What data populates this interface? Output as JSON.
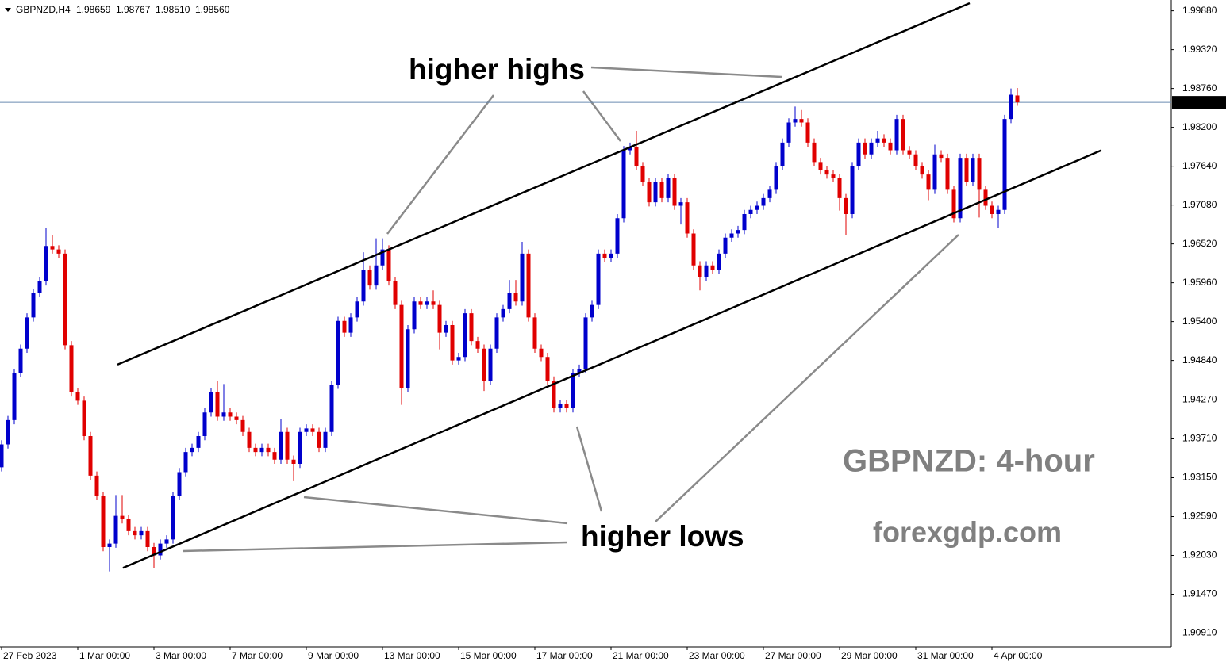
{
  "chart_data": {
    "type": "candlestick",
    "symbol": "GBPNZD,H4",
    "header_values": [
      "1.98659",
      "1.98767",
      "1.98510",
      "1.98560"
    ],
    "up_color": "#0000cc",
    "down_color": "#e00000",
    "open": [
      1.933,
      1.9363,
      1.9398,
      1.9466,
      1.9501,
      1.9546,
      1.9581,
      1.9598,
      1.9649,
      1.9644,
      1.9638,
      1.9506,
      1.9438,
      1.9426,
      1.9375,
      1.9318,
      1.9289,
      1.9215,
      1.922,
      1.926,
      1.9255,
      1.9238,
      1.9232,
      1.9238,
      1.9215,
      1.9203,
      1.922,
      1.9226,
      1.9289,
      1.9323,
      1.9352,
      1.9358,
      1.9375,
      1.9409,
      1.9438,
      1.9403,
      1.9409,
      1.9403,
      1.9398,
      1.9381,
      1.9358,
      1.9352,
      1.9358,
      1.9352,
      1.9341,
      1.9381,
      1.9341,
      1.9335,
      1.9381,
      1.9386,
      1.9381,
      1.9358,
      1.9381,
      1.9449,
      1.9541,
      1.9524,
      1.9546,
      1.9569,
      1.9615,
      1.9592,
      1.9621,
      1.9644,
      1.9598,
      1.9564,
      1.9444,
      1.9529,
      1.9569,
      1.9564,
      1.9569,
      1.9564,
      1.9524,
      1.9535,
      1.9484,
      1.9489,
      1.9552,
      1.9512,
      1.9501,
      1.9455,
      1.9501,
      1.9546,
      1.9558,
      1.9581,
      1.9569,
      1.9638,
      1.9546,
      1.9501,
      1.9489,
      1.9455,
      1.9415,
      1.9421,
      1.9415,
      1.9466,
      1.9472,
      1.9546,
      1.9564,
      1.9638,
      1.9632,
      1.9638,
      1.9689,
      1.9787,
      1.9792,
      1.9764,
      1.9741,
      1.9712,
      1.9741,
      1.9718,
      1.9747,
      1.9707,
      1.9712,
      1.9667,
      1.9621,
      1.9604,
      1.9621,
      1.9615,
      1.9638,
      1.9661,
      1.9667,
      1.9672,
      1.9695,
      1.9701,
      1.9707,
      1.9718,
      1.973,
      1.9764,
      1.9798,
      1.9827,
      1.9832,
      1.9827,
      1.9798,
      1.977,
      1.9758,
      1.9752,
      1.9747,
      1.9718,
      1.9695,
      1.9764,
      1.9798,
      1.9781,
      1.9798,
      1.9804,
      1.9798,
      1.9787,
      1.9832,
      1.9787,
      1.9781,
      1.9764,
      1.9752,
      1.973,
      1.9781,
      1.9776,
      1.973,
      1.9689,
      1.9776,
      1.9741,
      1.9776,
      1.973,
      1.9707,
      1.9695,
      1.9701,
      1.9832,
      1.98659
    ],
    "high": [
      1.9369,
      1.9404,
      1.9472,
      1.9507,
      1.9552,
      1.9587,
      1.9604,
      1.9675,
      1.9665,
      1.965,
      1.9644,
      1.9512,
      1.9444,
      1.9432,
      1.9381,
      1.9324,
      1.9295,
      1.9226,
      1.929,
      1.929,
      1.9261,
      1.9244,
      1.9244,
      1.9244,
      1.9221,
      1.9226,
      1.9232,
      1.9295,
      1.9329,
      1.9358,
      1.9364,
      1.9381,
      1.9415,
      1.9444,
      1.9454,
      1.945,
      1.9415,
      1.9409,
      1.9404,
      1.9387,
      1.9364,
      1.9364,
      1.9364,
      1.9358,
      1.94,
      1.9387,
      1.9347,
      1.9387,
      1.9392,
      1.9392,
      1.9387,
      1.9387,
      1.9455,
      1.9547,
      1.9547,
      1.9552,
      1.9575,
      1.964,
      1.9621,
      1.966,
      1.966,
      1.965,
      1.9604,
      1.957,
      1.9535,
      1.9575,
      1.9575,
      1.9575,
      1.9585,
      1.957,
      1.9541,
      1.9541,
      1.9495,
      1.9558,
      1.9558,
      1.9518,
      1.9507,
      1.9507,
      1.9552,
      1.9564,
      1.96,
      1.96,
      1.9655,
      1.9644,
      1.9552,
      1.9507,
      1.9495,
      1.9461,
      1.9427,
      1.9427,
      1.9472,
      1.9478,
      1.9552,
      1.957,
      1.9644,
      1.9644,
      1.9644,
      1.9695,
      1.9793,
      1.9798,
      1.9815,
      1.977,
      1.9747,
      1.9747,
      1.9747,
      1.9753,
      1.9753,
      1.9718,
      1.9718,
      1.9673,
      1.9627,
      1.9627,
      1.9627,
      1.9644,
      1.9667,
      1.9673,
      1.9678,
      1.9701,
      1.9707,
      1.9713,
      1.9724,
      1.9736,
      1.977,
      1.9804,
      1.9833,
      1.985,
      1.9845,
      1.9833,
      1.9804,
      1.9776,
      1.9764,
      1.9758,
      1.9753,
      1.9724,
      1.977,
      1.9804,
      1.9804,
      1.9804,
      1.9815,
      1.981,
      1.9804,
      1.9838,
      1.9838,
      1.9793,
      1.9787,
      1.977,
      1.9758,
      1.9795,
      1.9787,
      1.9782,
      1.9736,
      1.9782,
      1.9782,
      1.9782,
      1.9782,
      1.9736,
      1.9713,
      1.9707,
      1.9838,
      1.9876,
      1.98767
    ],
    "low": [
      1.9324,
      1.9357,
      1.9392,
      1.946,
      1.9495,
      1.954,
      1.9575,
      1.9592,
      1.9638,
      1.9632,
      1.95,
      1.9432,
      1.942,
      1.9369,
      1.9312,
      1.9283,
      1.9209,
      1.918,
      1.9214,
      1.9249,
      1.9232,
      1.9226,
      1.9226,
      1.9209,
      1.9185,
      1.9197,
      1.9214,
      1.922,
      1.9283,
      1.9317,
      1.9346,
      1.9352,
      1.9369,
      1.9403,
      1.9397,
      1.9397,
      1.9397,
      1.9392,
      1.9375,
      1.9352,
      1.9346,
      1.9346,
      1.9346,
      1.9335,
      1.9335,
      1.9335,
      1.931,
      1.9329,
      1.9375,
      1.9375,
      1.9352,
      1.9352,
      1.9375,
      1.9443,
      1.9518,
      1.9518,
      1.954,
      1.9563,
      1.9586,
      1.9586,
      1.9615,
      1.9592,
      1.9558,
      1.942,
      1.9438,
      1.9523,
      1.9558,
      1.9558,
      1.9558,
      1.95,
      1.9518,
      1.9478,
      1.9478,
      1.9483,
      1.9506,
      1.9495,
      1.944,
      1.9449,
      1.9495,
      1.954,
      1.9552,
      1.9563,
      1.9563,
      1.954,
      1.9495,
      1.9483,
      1.9449,
      1.9409,
      1.9409,
      1.9409,
      1.9409,
      1.946,
      1.9466,
      1.954,
      1.9558,
      1.9626,
      1.9626,
      1.9632,
      1.9683,
      1.9781,
      1.9758,
      1.9735,
      1.9706,
      1.9706,
      1.9712,
      1.9712,
      1.9701,
      1.968,
      1.9661,
      1.9615,
      1.9585,
      1.9598,
      1.9609,
      1.9609,
      1.9632,
      1.9655,
      1.9661,
      1.9666,
      1.9689,
      1.9695,
      1.9701,
      1.9712,
      1.9724,
      1.9758,
      1.9792,
      1.9821,
      1.9821,
      1.9792,
      1.9764,
      1.9752,
      1.9746,
      1.9741,
      1.97,
      1.9665,
      1.9689,
      1.9758,
      1.9775,
      1.9775,
      1.9792,
      1.9792,
      1.9781,
      1.9781,
      1.9781,
      1.9775,
      1.9758,
      1.9746,
      1.9715,
      1.9724,
      1.977,
      1.9724,
      1.9683,
      1.9683,
      1.9735,
      1.9735,
      1.969,
      1.9701,
      1.9689,
      1.9675,
      1.9695,
      1.9826,
      1.9851
    ],
    "close": [
      1.9363,
      1.9398,
      1.9466,
      1.9501,
      1.9546,
      1.9581,
      1.9598,
      1.9649,
      1.9644,
      1.9638,
      1.9506,
      1.9438,
      1.9426,
      1.9375,
      1.9318,
      1.9289,
      1.9215,
      1.922,
      1.926,
      1.9255,
      1.9238,
      1.9232,
      1.9238,
      1.9215,
      1.9203,
      1.922,
      1.9226,
      1.9289,
      1.9323,
      1.9352,
      1.9358,
      1.9375,
      1.9409,
      1.9438,
      1.9403,
      1.9409,
      1.9403,
      1.9398,
      1.9381,
      1.9358,
      1.9352,
      1.9358,
      1.9352,
      1.9341,
      1.9381,
      1.9341,
      1.9335,
      1.9381,
      1.9386,
      1.9381,
      1.9358,
      1.9381,
      1.9449,
      1.9541,
      1.9524,
      1.9546,
      1.9569,
      1.9615,
      1.9592,
      1.9621,
      1.9644,
      1.9598,
      1.9564,
      1.9444,
      1.9529,
      1.9569,
      1.9564,
      1.9569,
      1.9564,
      1.9524,
      1.9535,
      1.9484,
      1.9489,
      1.9552,
      1.9512,
      1.9501,
      1.9455,
      1.9501,
      1.9546,
      1.9558,
      1.9581,
      1.9569,
      1.9638,
      1.9546,
      1.9501,
      1.9489,
      1.9455,
      1.9415,
      1.9421,
      1.9415,
      1.9466,
      1.9472,
      1.9546,
      1.9564,
      1.9638,
      1.9632,
      1.9638,
      1.9689,
      1.9787,
      1.9792,
      1.9764,
      1.9741,
      1.9712,
      1.9741,
      1.9718,
      1.9747,
      1.9707,
      1.9712,
      1.9667,
      1.9621,
      1.9604,
      1.9621,
      1.9615,
      1.9638,
      1.9661,
      1.9667,
      1.9672,
      1.9695,
      1.9701,
      1.9707,
      1.9718,
      1.973,
      1.9764,
      1.9798,
      1.9827,
      1.9832,
      1.9827,
      1.9798,
      1.977,
      1.9758,
      1.9752,
      1.9747,
      1.9718,
      1.9695,
      1.9764,
      1.9798,
      1.9781,
      1.9798,
      1.9804,
      1.9798,
      1.9787,
      1.9832,
      1.9787,
      1.9781,
      1.9764,
      1.9752,
      1.973,
      1.9781,
      1.9776,
      1.973,
      1.9689,
      1.9776,
      1.9741,
      1.9776,
      1.973,
      1.9707,
      1.9695,
      1.9701,
      1.9832,
      1.9867,
      1.9856
    ],
    "current_price": {
      "value": 1.9856,
      "label": "1.98560"
    },
    "xlim": [
      -0.25,
      184.25
    ],
    "xticks": [
      {
        "value": 0,
        "label": "27 Feb 2023"
      },
      {
        "value": 12,
        "label": "1 Mar 00:00"
      },
      {
        "value": 24,
        "label": "3 Mar 00:00"
      },
      {
        "value": 36,
        "label": "7 Mar 00:00"
      },
      {
        "value": 48,
        "label": "9 Mar 00:00"
      },
      {
        "value": 60,
        "label": "13 Mar 00:00"
      },
      {
        "value": 72,
        "label": "15 Mar 00:00"
      },
      {
        "value": 84,
        "label": "17 Mar 00:00"
      },
      {
        "value": 96,
        "label": "21 Mar 00:00"
      },
      {
        "value": 108,
        "label": "23 Mar 00:00"
      },
      {
        "value": 120,
        "label": "27 Mar 00:00"
      },
      {
        "value": 132,
        "label": "29 Mar 00:00"
      },
      {
        "value": 144,
        "label": "31 Mar 00:00"
      },
      {
        "value": 156,
        "label": "4 Apr 00:00"
      }
    ],
    "ylim": [
      1.9071,
      1.9999
    ],
    "yticks": [
      {
        "value": 1.9988,
        "label": "1.99880"
      },
      {
        "value": 1.9932,
        "label": "1.99320"
      },
      {
        "value": 1.9876,
        "label": "1.98760"
      },
      {
        "value": 1.982,
        "label": "1.98200"
      },
      {
        "value": 1.9764,
        "label": "1.97640"
      },
      {
        "value": 1.9708,
        "label": "1.97080"
      },
      {
        "value": 1.9652,
        "label": "1.96520"
      },
      {
        "value": 1.9596,
        "label": "1.95960"
      },
      {
        "value": 1.954,
        "label": "1.95400"
      },
      {
        "value": 1.9484,
        "label": "1.94840"
      },
      {
        "value": 1.9427,
        "label": "1.94270"
      },
      {
        "value": 1.9371,
        "label": "1.93710"
      },
      {
        "value": 1.9315,
        "label": "1.93150"
      },
      {
        "value": 1.9259,
        "label": "1.92590"
      },
      {
        "value": 1.9203,
        "label": "1.92030"
      },
      {
        "value": 1.9147,
        "label": "1.91470"
      },
      {
        "value": 1.9091,
        "label": "1.90910"
      }
    ],
    "trendlines": [
      {
        "x": [
          18.25,
          152.5
        ],
        "y": [
          1.9478,
          1.9999
        ]
      },
      {
        "x": [
          19.125,
          173.25
        ],
        "y": [
          1.9185,
          1.9787
        ]
      }
    ],
    "annotations": [
      "higher highs",
      "higher lows",
      "GBPNZD: 4-hour",
      "forexgdp.com"
    ]
  }
}
